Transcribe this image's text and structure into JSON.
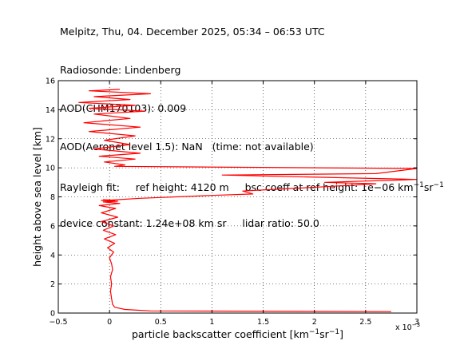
{
  "header": {
    "line1": "Melpitz, Thu, 04. December 2025, 05:34 – 06:53 UTC",
    "line2": "Radiosonde: Lindenberg",
    "line3": "AOD(CHM170103): 0.009",
    "line4_a": "AOD(Aeronet level 1.5): NaN",
    "line4_b": "(time: not available)",
    "line5_a": "Rayleigh fit:",
    "line5_b": "ref height: 4120 m",
    "line5_c_pre": "bsc coeff at ref height: 1e−06 km",
    "line5_c_sup1": "−1",
    "line5_c_mid": "sr",
    "line5_c_sup2": "−1",
    "line6_a": "device constant: 1.24e+08 km sr",
    "line6_b": "lidar ratio: 50.0"
  },
  "chart_data": {
    "type": "line",
    "xlabel_pre": "particle backscatter coefficient [km",
    "xlabel_sup1": "−1",
    "xlabel_mid": "sr",
    "xlabel_sup2": "−1",
    "xlabel_post": "]",
    "ylabel": "height above sea level [km]",
    "x_exponent_label": "x 10",
    "x_exponent_sup": "−3",
    "xlim": [
      -0.5,
      3
    ],
    "ylim": [
      0,
      16
    ],
    "xticks": [
      "−0.5",
      "0",
      "0.5",
      "1",
      "1.5",
      "2",
      "2.5",
      "3"
    ],
    "yticks": [
      "0",
      "2",
      "4",
      "6",
      "8",
      "10",
      "12",
      "14",
      "16"
    ],
    "grid": true,
    "series_color": "#ff0000",
    "profile": {
      "x": [
        2.75,
        0.4,
        0.15,
        0.05,
        0.03,
        0.02,
        0.01,
        0.02,
        0.01,
        0.03,
        0.02,
        0.0,
        0.04,
        -0.02,
        0.05,
        -0.05,
        0.06,
        -0.06,
        0.04,
        -0.08,
        0.08,
        -0.08,
        0.06,
        -0.1,
        0.1,
        -0.06,
        0.08,
        -0.08,
        0.05,
        -0.06,
        0.02,
        0.3,
        1.0,
        1.4,
        1.3,
        2.1,
        2.6,
        2.1,
        3.0,
        1.1,
        2.6,
        3.0,
        0.05,
        0.15,
        -0.05,
        0.25,
        -0.1,
        0.3,
        -0.15,
        0.2,
        -0.05,
        0.25,
        -0.2,
        0.3,
        -0.25,
        0.2,
        -0.15,
        0.35,
        -0.2,
        0.25,
        -0.3,
        0.2,
        -0.15,
        0.4,
        -0.2,
        0.1
      ],
      "y": [
        0.1,
        0.15,
        0.25,
        0.4,
        0.6,
        1.0,
        1.5,
        2.0,
        2.5,
        3.0,
        3.4,
        3.8,
        4.2,
        4.5,
        4.8,
        5.1,
        5.4,
        5.7,
        6.0,
        6.3,
        6.6,
        6.9,
        7.2,
        7.4,
        7.55,
        7.65,
        7.7,
        7.75,
        7.75,
        7.8,
        7.78,
        7.9,
        8.1,
        8.2,
        8.4,
        8.7,
        8.9,
        9.0,
        9.2,
        9.5,
        9.6,
        9.95,
        10.1,
        10.2,
        10.4,
        10.6,
        10.8,
        11.0,
        11.3,
        11.6,
        11.9,
        12.2,
        12.5,
        12.8,
        13.1,
        13.4,
        13.7,
        13.9,
        14.1,
        14.3,
        14.5,
        14.7,
        14.9,
        15.1,
        15.3,
        15.4
      ]
    }
  }
}
